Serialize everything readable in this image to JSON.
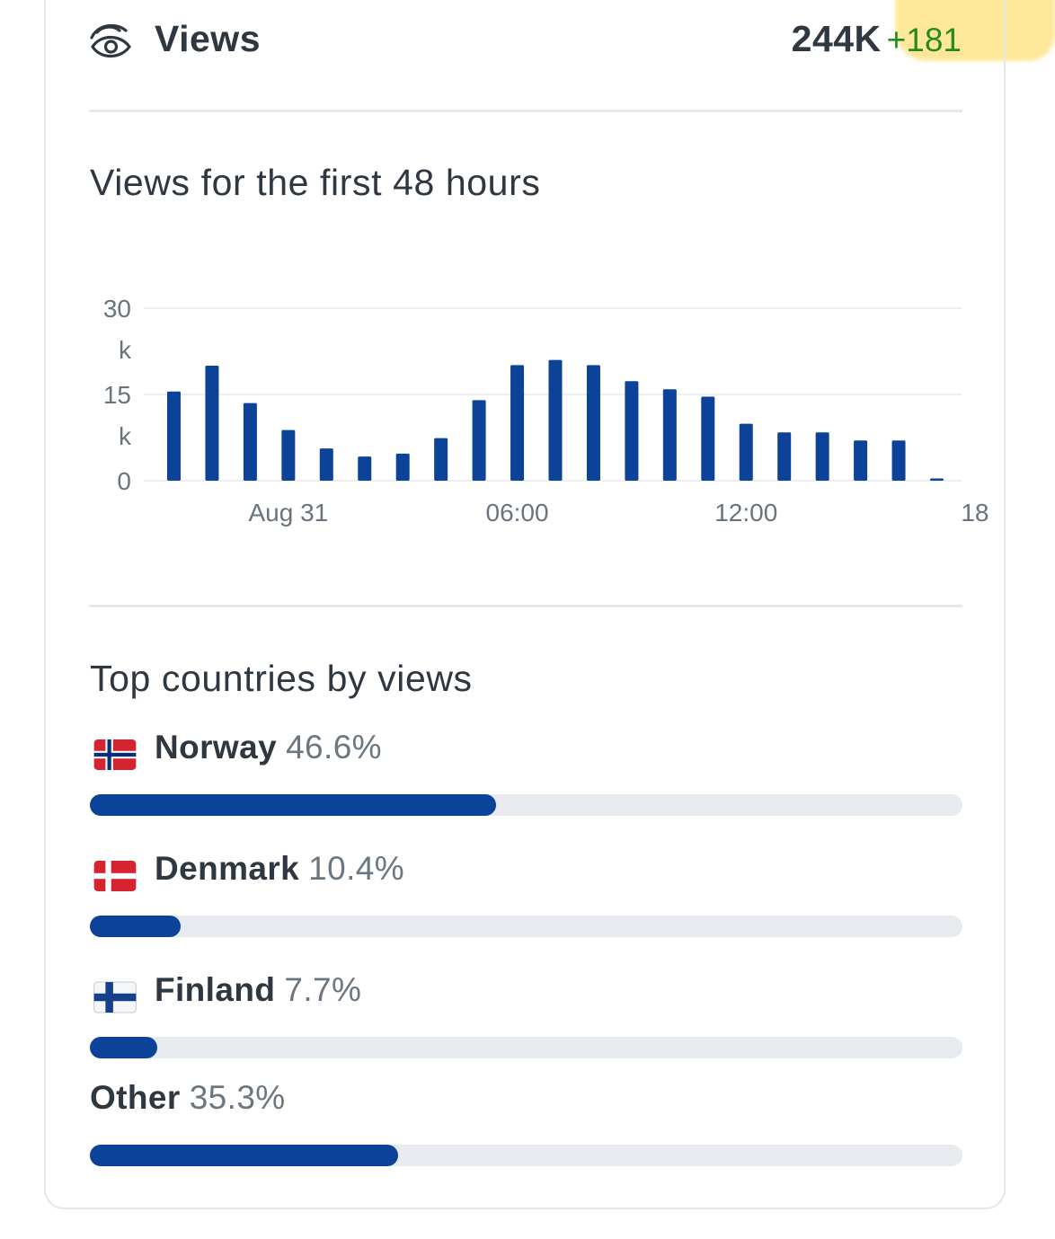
{
  "header": {
    "title": "Views",
    "total": "244K",
    "delta": "+181",
    "icon": "eye-icon"
  },
  "views_chart": {
    "title": "Views for the first 48 hours"
  },
  "chart_data": {
    "type": "bar",
    "title": "Views for the first 48 hours",
    "xlabel": "",
    "ylabel": "",
    "ylim": [
      0,
      30000
    ],
    "y_ticks": [
      {
        "value": 0,
        "label": [
          "0"
        ]
      },
      {
        "value": 15000,
        "label": [
          "15",
          "k"
        ]
      },
      {
        "value": 30000,
        "label": [
          "30",
          "k"
        ]
      }
    ],
    "x_ticks": [
      {
        "index": 3,
        "label": "Aug 31"
      },
      {
        "index": 9,
        "label": "06:00"
      },
      {
        "index": 15,
        "label": "12:00"
      },
      {
        "index": 21,
        "label": "18"
      }
    ],
    "values": [
      15500,
      20000,
      13500,
      8800,
      5600,
      4200,
      4700,
      7400,
      14000,
      20100,
      21000,
      20100,
      17300,
      15900,
      14600,
      9900,
      8400,
      8400,
      7000,
      7000,
      400
    ],
    "bar_color": "#0d4299",
    "grid": true
  },
  "countries": {
    "title": "Top countries by views",
    "items": [
      {
        "name": "Norway",
        "percent": "46.6%",
        "fraction": 0.466,
        "flag": "norway-flag"
      },
      {
        "name": "Denmark",
        "percent": "10.4%",
        "fraction": 0.104,
        "flag": "denmark-flag"
      },
      {
        "name": "Finland",
        "percent": "7.7%",
        "fraction": 0.077,
        "flag": "finland-flag"
      },
      {
        "name": "Other",
        "percent": "35.3%",
        "fraction": 0.353,
        "flag": ""
      }
    ]
  },
  "colors": {
    "accent": "#0d4299",
    "track": "#e7ebf0",
    "delta": "#2a8a1e",
    "highlight": "#fde589"
  }
}
